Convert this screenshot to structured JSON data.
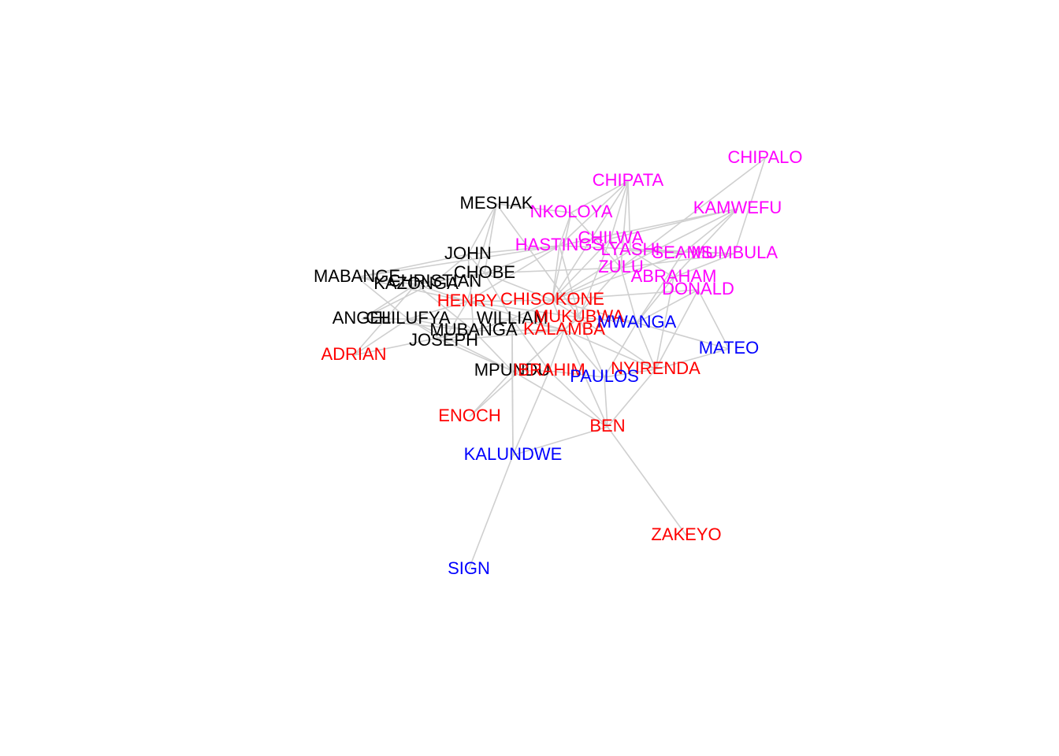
{
  "colors": {
    "group_black": "#000000",
    "group_red": "#ff0000",
    "group_magenta": "#ff00ff",
    "group_blue": "#0000ff",
    "edge": "#cfcfcf"
  },
  "nodes": [
    {
      "id": "CHIPALO",
      "label": "CHIPALO",
      "group": "magenta"
    },
    {
      "id": "CHIPATA",
      "label": "CHIPATA",
      "group": "magenta"
    },
    {
      "id": "KAMWEFU",
      "label": "KAMWEFU",
      "group": "magenta"
    },
    {
      "id": "NKOLOYA",
      "label": "NKOLOYA",
      "group": "magenta"
    },
    {
      "id": "HASTINGS",
      "label": "HASTINGS",
      "group": "magenta"
    },
    {
      "id": "CHILWA",
      "label": "CHILWA",
      "group": "magenta"
    },
    {
      "id": "LYASHI",
      "label": "LYASHI",
      "group": "magenta"
    },
    {
      "id": "SEAMS",
      "label": "SEAMS",
      "group": "magenta"
    },
    {
      "id": "MUMBULA",
      "label": "MUMBULA",
      "group": "magenta"
    },
    {
      "id": "ZULU",
      "label": "ZULU",
      "group": "magenta"
    },
    {
      "id": "ABRAHAM",
      "label": "ABRAHAM",
      "group": "magenta"
    },
    {
      "id": "DONALD",
      "label": "DONALD",
      "group": "magenta"
    },
    {
      "id": "MESHAK",
      "label": "MESHAK",
      "group": "black"
    },
    {
      "id": "JOHN",
      "label": "JOHN",
      "group": "black"
    },
    {
      "id": "CHOBE",
      "label": "CHOBE",
      "group": "black"
    },
    {
      "id": "MABANGE",
      "label": "MABANGE",
      "group": "black"
    },
    {
      "id": "CHRISTIAN",
      "label": "CHRISTIAN",
      "group": "black"
    },
    {
      "id": "KAZONGA",
      "label": "KAZONGA",
      "group": "black"
    },
    {
      "id": "ANGEL",
      "label": "ANGEL",
      "group": "black"
    },
    {
      "id": "CHILUFYA",
      "label": "CHILUFYA",
      "group": "black"
    },
    {
      "id": "WILLIAM",
      "label": "WILLIAM",
      "group": "black"
    },
    {
      "id": "MUBANGA",
      "label": "MUBANGA",
      "group": "black"
    },
    {
      "id": "JOSEPH",
      "label": "JOSEPH",
      "group": "black"
    },
    {
      "id": "MPUNDU",
      "label": "MPUNDU",
      "group": "black"
    },
    {
      "id": "HENRY",
      "label": "HENRY",
      "group": "red"
    },
    {
      "id": "CHISOKONE",
      "label": "CHISOKONE",
      "group": "red"
    },
    {
      "id": "MUKUBWA",
      "label": "MUKUBWA",
      "group": "red"
    },
    {
      "id": "KALAMBA",
      "label": "KALAMBA",
      "group": "red"
    },
    {
      "id": "ADRIAN",
      "label": "ADRIAN",
      "group": "red"
    },
    {
      "id": "IBRAHIM",
      "label": "IBRAHIM",
      "group": "red"
    },
    {
      "id": "NYIRENDA",
      "label": "NYIRENDA",
      "group": "red"
    },
    {
      "id": "ENOCH",
      "label": "ENOCH",
      "group": "red"
    },
    {
      "id": "BEN",
      "label": "BEN",
      "group": "red"
    },
    {
      "id": "ZAKEYO",
      "label": "ZAKEYO",
      "group": "red"
    },
    {
      "id": "MWANGA",
      "label": "MWANGA",
      "group": "blue"
    },
    {
      "id": "MATEO",
      "label": "MATEO",
      "group": "blue"
    },
    {
      "id": "PAULOS",
      "label": "PAULOS",
      "group": "blue"
    },
    {
      "id": "KALUNDWE",
      "label": "KALUNDWE",
      "group": "blue"
    },
    {
      "id": "SIGN",
      "label": "SIGN",
      "group": "blue"
    }
  ],
  "edges": [
    [
      "CHIPALO",
      "MUMBULA"
    ],
    [
      "CHIPALO",
      "ZULU"
    ],
    [
      "CHIPATA",
      "NKOLOYA"
    ],
    [
      "CHIPATA",
      "CHILWA"
    ],
    [
      "CHIPATA",
      "LYASHI"
    ],
    [
      "CHIPATA",
      "HASTINGS"
    ],
    [
      "CHIPATA",
      "ZULU"
    ],
    [
      "CHIPATA",
      "CHISOKONE"
    ],
    [
      "KAMWEFU",
      "CHILWA"
    ],
    [
      "KAMWEFU",
      "SEAMS"
    ],
    [
      "KAMWEFU",
      "ABRAHAM"
    ],
    [
      "KAMWEFU",
      "HASTINGS"
    ],
    [
      "KAMWEFU",
      "ZULU"
    ],
    [
      "MUMBULA",
      "LYASHI"
    ],
    [
      "MUMBULA",
      "ABRAHAM"
    ],
    [
      "MUMBULA",
      "HASTINGS"
    ],
    [
      "MUMBULA",
      "ZULU"
    ],
    [
      "NKOLOYA",
      "HASTINGS"
    ],
    [
      "NKOLOYA",
      "ZULU"
    ],
    [
      "NKOLOYA",
      "CHISOKONE"
    ],
    [
      "HASTINGS",
      "CHISOKONE"
    ],
    [
      "HASTINGS",
      "JOHN"
    ],
    [
      "HASTINGS",
      "CHOBE"
    ],
    [
      "HASTINGS",
      "HENRY"
    ],
    [
      "HASTINGS",
      "MUKUBWA"
    ],
    [
      "CHILWA",
      "CHISOKONE"
    ],
    [
      "CHILWA",
      "ZULU"
    ],
    [
      "CHILWA",
      "MUKUBWA"
    ],
    [
      "LYASHI",
      "SEAMS"
    ],
    [
      "LYASHI",
      "ABRAHAM"
    ],
    [
      "LYASHI",
      "CHISOKONE"
    ],
    [
      "SEAMS",
      "MWANGA"
    ],
    [
      "SEAMS",
      "CHISOKONE"
    ],
    [
      "ZULU",
      "MWANGA"
    ],
    [
      "ZULU",
      "CHISOKONE"
    ],
    [
      "ZULU",
      "KALAMBA"
    ],
    [
      "ZULU",
      "CHOBE"
    ],
    [
      "ABRAHAM",
      "MWANGA"
    ],
    [
      "ABRAHAM",
      "NYIRENDA"
    ],
    [
      "DONALD",
      "MATEO"
    ],
    [
      "DONALD",
      "MWANGA"
    ],
    [
      "DONALD",
      "NYIRENDA"
    ],
    [
      "DONALD",
      "CHISOKONE"
    ],
    [
      "MESHAK",
      "JOHN"
    ],
    [
      "MESHAK",
      "CHOBE"
    ],
    [
      "MESHAK",
      "HENRY"
    ],
    [
      "MESHAK",
      "MUKUBWA"
    ],
    [
      "MESHAK",
      "NKOLOYA"
    ],
    [
      "JOHN",
      "CHOBE"
    ],
    [
      "JOHN",
      "CHRISTIAN"
    ],
    [
      "JOHN",
      "MABANGE"
    ],
    [
      "JOHN",
      "MUBANGA"
    ],
    [
      "CHOBE",
      "CHRISTIAN"
    ],
    [
      "CHOBE",
      "KAZONGA"
    ],
    [
      "CHOBE",
      "CHISOKONE"
    ],
    [
      "CHOBE",
      "WILLIAM"
    ],
    [
      "MABANGE",
      "CHRISTIAN"
    ],
    [
      "MABANGE",
      "KAZONGA"
    ],
    [
      "MABANGE",
      "CHILUFYA"
    ],
    [
      "MABANGE",
      "HENRY"
    ],
    [
      "MABANGE",
      "HASTINGS"
    ],
    [
      "KAZONGA",
      "CHRISTIAN"
    ],
    [
      "KAZONGA",
      "HENRY"
    ],
    [
      "KAZONGA",
      "MUBANGA"
    ],
    [
      "ANGEL",
      "CHILUFYA"
    ],
    [
      "ANGEL",
      "MUBANGA"
    ],
    [
      "ANGEL",
      "KAZONGA"
    ],
    [
      "ANGEL",
      "CHRISTIAN"
    ],
    [
      "ADRIAN",
      "CHILUFYA"
    ],
    [
      "ADRIAN",
      "MUBANGA"
    ],
    [
      "ADRIAN",
      "KAZONGA"
    ],
    [
      "CHILUFYA",
      "MUBANGA"
    ],
    [
      "CHILUFYA",
      "WILLIAM"
    ],
    [
      "CHILUFYA",
      "JOSEPH"
    ],
    [
      "CHILUFYA",
      "HENRY"
    ],
    [
      "CHILUFYA",
      "MPUNDU"
    ],
    [
      "WILLIAM",
      "MUBANGA"
    ],
    [
      "WILLIAM",
      "KALAMBA"
    ],
    [
      "WILLIAM",
      "CHISOKONE"
    ],
    [
      "WILLIAM",
      "MPUNDU"
    ],
    [
      "WILLIAM",
      "IBRAHIM"
    ],
    [
      "MUBANGA",
      "JOSEPH"
    ],
    [
      "MUBANGA",
      "KALAMBA"
    ],
    [
      "MUBANGA",
      "MPUNDU"
    ],
    [
      "JOSEPH",
      "MPUNDU"
    ],
    [
      "JOSEPH",
      "KALAMBA"
    ],
    [
      "JOSEPH",
      "HENRY"
    ],
    [
      "HENRY",
      "CHISOKONE"
    ],
    [
      "HENRY",
      "MUKUBWA"
    ],
    [
      "HENRY",
      "KALAMBA"
    ],
    [
      "CHISOKONE",
      "MUKUBWA"
    ],
    [
      "CHISOKONE",
      "MWANGA"
    ],
    [
      "CHISOKONE",
      "KALAMBA"
    ],
    [
      "MUKUBWA",
      "KALAMBA"
    ],
    [
      "MUKUBWA",
      "MWANGA"
    ],
    [
      "MUKUBWA",
      "NYIRENDA"
    ],
    [
      "MUKUBWA",
      "PAULOS"
    ],
    [
      "KALAMBA",
      "IBRAHIM"
    ],
    [
      "KALAMBA",
      "PAULOS"
    ],
    [
      "KALAMBA",
      "NYIRENDA"
    ],
    [
      "KALAMBA",
      "BEN"
    ],
    [
      "MWANGA",
      "MATEO"
    ],
    [
      "MWANGA",
      "NYIRENDA"
    ],
    [
      "MWANGA",
      "PAULOS"
    ],
    [
      "NYIRENDA",
      "MATEO"
    ],
    [
      "NYIRENDA",
      "BEN"
    ],
    [
      "NYIRENDA",
      "PAULOS"
    ],
    [
      "PAULOS",
      "BEN"
    ],
    [
      "PAULOS",
      "IBRAHIM"
    ],
    [
      "IBRAHIM",
      "MPUNDU"
    ],
    [
      "IBRAHIM",
      "BEN"
    ],
    [
      "IBRAHIM",
      "KALUNDWE"
    ],
    [
      "MPUNDU",
      "ENOCH"
    ],
    [
      "MPUNDU",
      "KALUNDWE"
    ],
    [
      "MPUNDU",
      "BEN"
    ],
    [
      "ENOCH",
      "KALAMBA"
    ],
    [
      "BEN",
      "ZAKEYO"
    ],
    [
      "BEN",
      "KALUNDWE"
    ],
    [
      "KALUNDWE",
      "SIGN"
    ],
    [
      "KALUNDWE",
      "WILLIAM"
    ]
  ]
}
